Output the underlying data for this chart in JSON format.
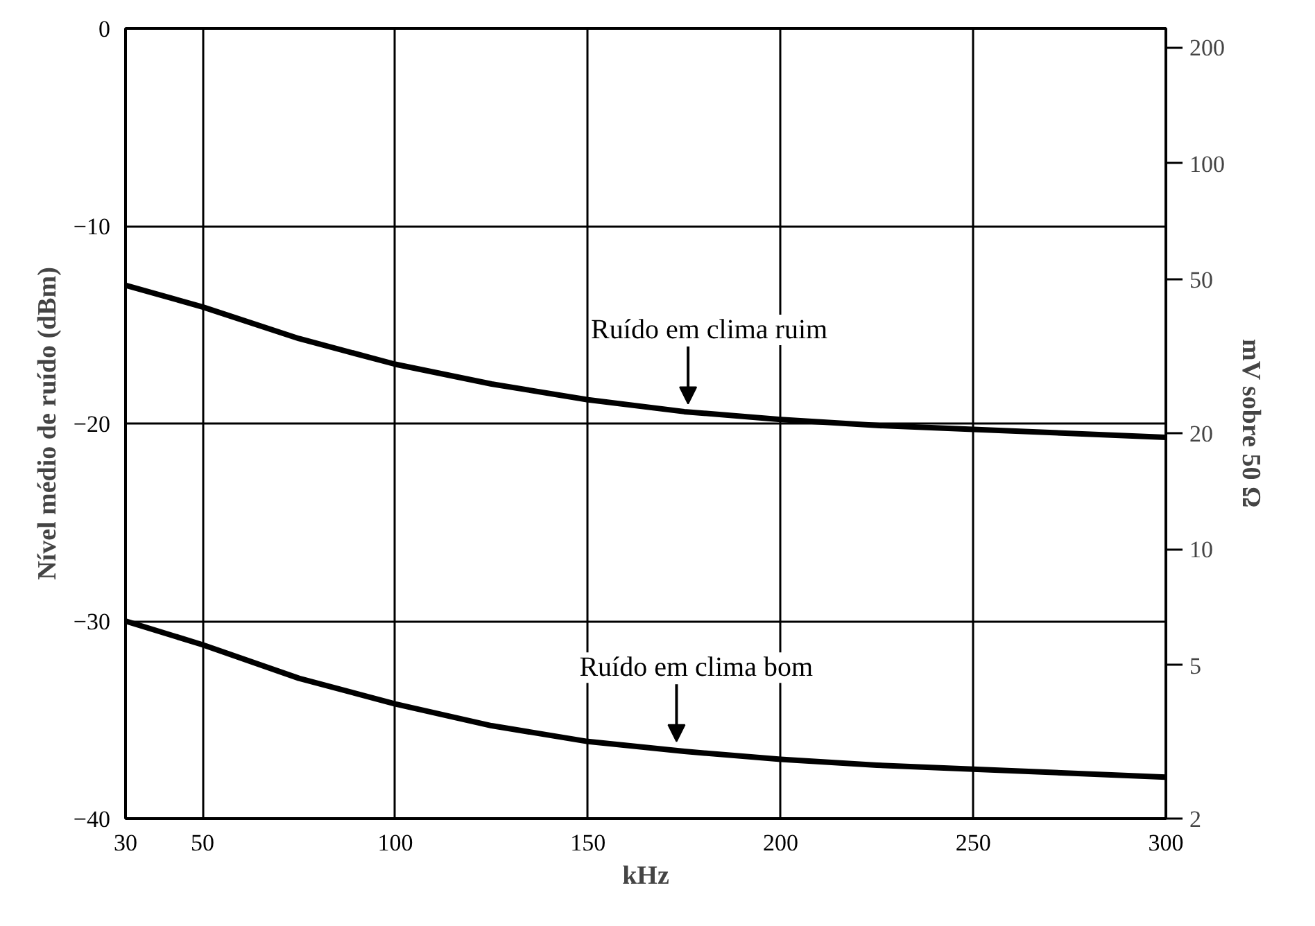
{
  "chart_data": {
    "type": "line",
    "xlabel": "kHz",
    "ylabel": "Nível médio de ruído (dBm)",
    "y2label": "mV sobre 50 Ω",
    "x": [
      30,
      50,
      75,
      100,
      125,
      150,
      175,
      200,
      225,
      250,
      275,
      300
    ],
    "series": [
      {
        "color": "#000000",
        "values": [
          -13,
          -14.1,
          -15.7,
          -17,
          -18,
          -18.8,
          -19.4,
          -19.8,
          -20.1,
          -20.3,
          -20.5,
          -20.7
        ]
      },
      {
        "color": "#000000",
        "values": [
          -30,
          -31.2,
          -32.9,
          -34.2,
          -35.3,
          -36.1,
          -36.6,
          -37,
          -37.3,
          -37.5,
          -37.7,
          -37.9
        ]
      }
    ],
    "xlim": [
      30,
      300
    ],
    "xticks": [
      30,
      50,
      100,
      150,
      200,
      250,
      300
    ],
    "ylim": [
      -40,
      0
    ],
    "yticks": [
      -40,
      -30,
      -20,
      -10,
      0
    ],
    "y2lim": [
      2,
      224
    ],
    "y2ticks": [
      2,
      5,
      10,
      20,
      50,
      100,
      200
    ],
    "log": "y2",
    "grid": true,
    "line_style": "solid",
    "annotations": [
      {
        "text": "Ruído em clima ruim",
        "x": 176,
        "y": -19.4
      },
      {
        "text": "Ruído em clima bom",
        "x": 173,
        "y": -36.5
      }
    ]
  }
}
